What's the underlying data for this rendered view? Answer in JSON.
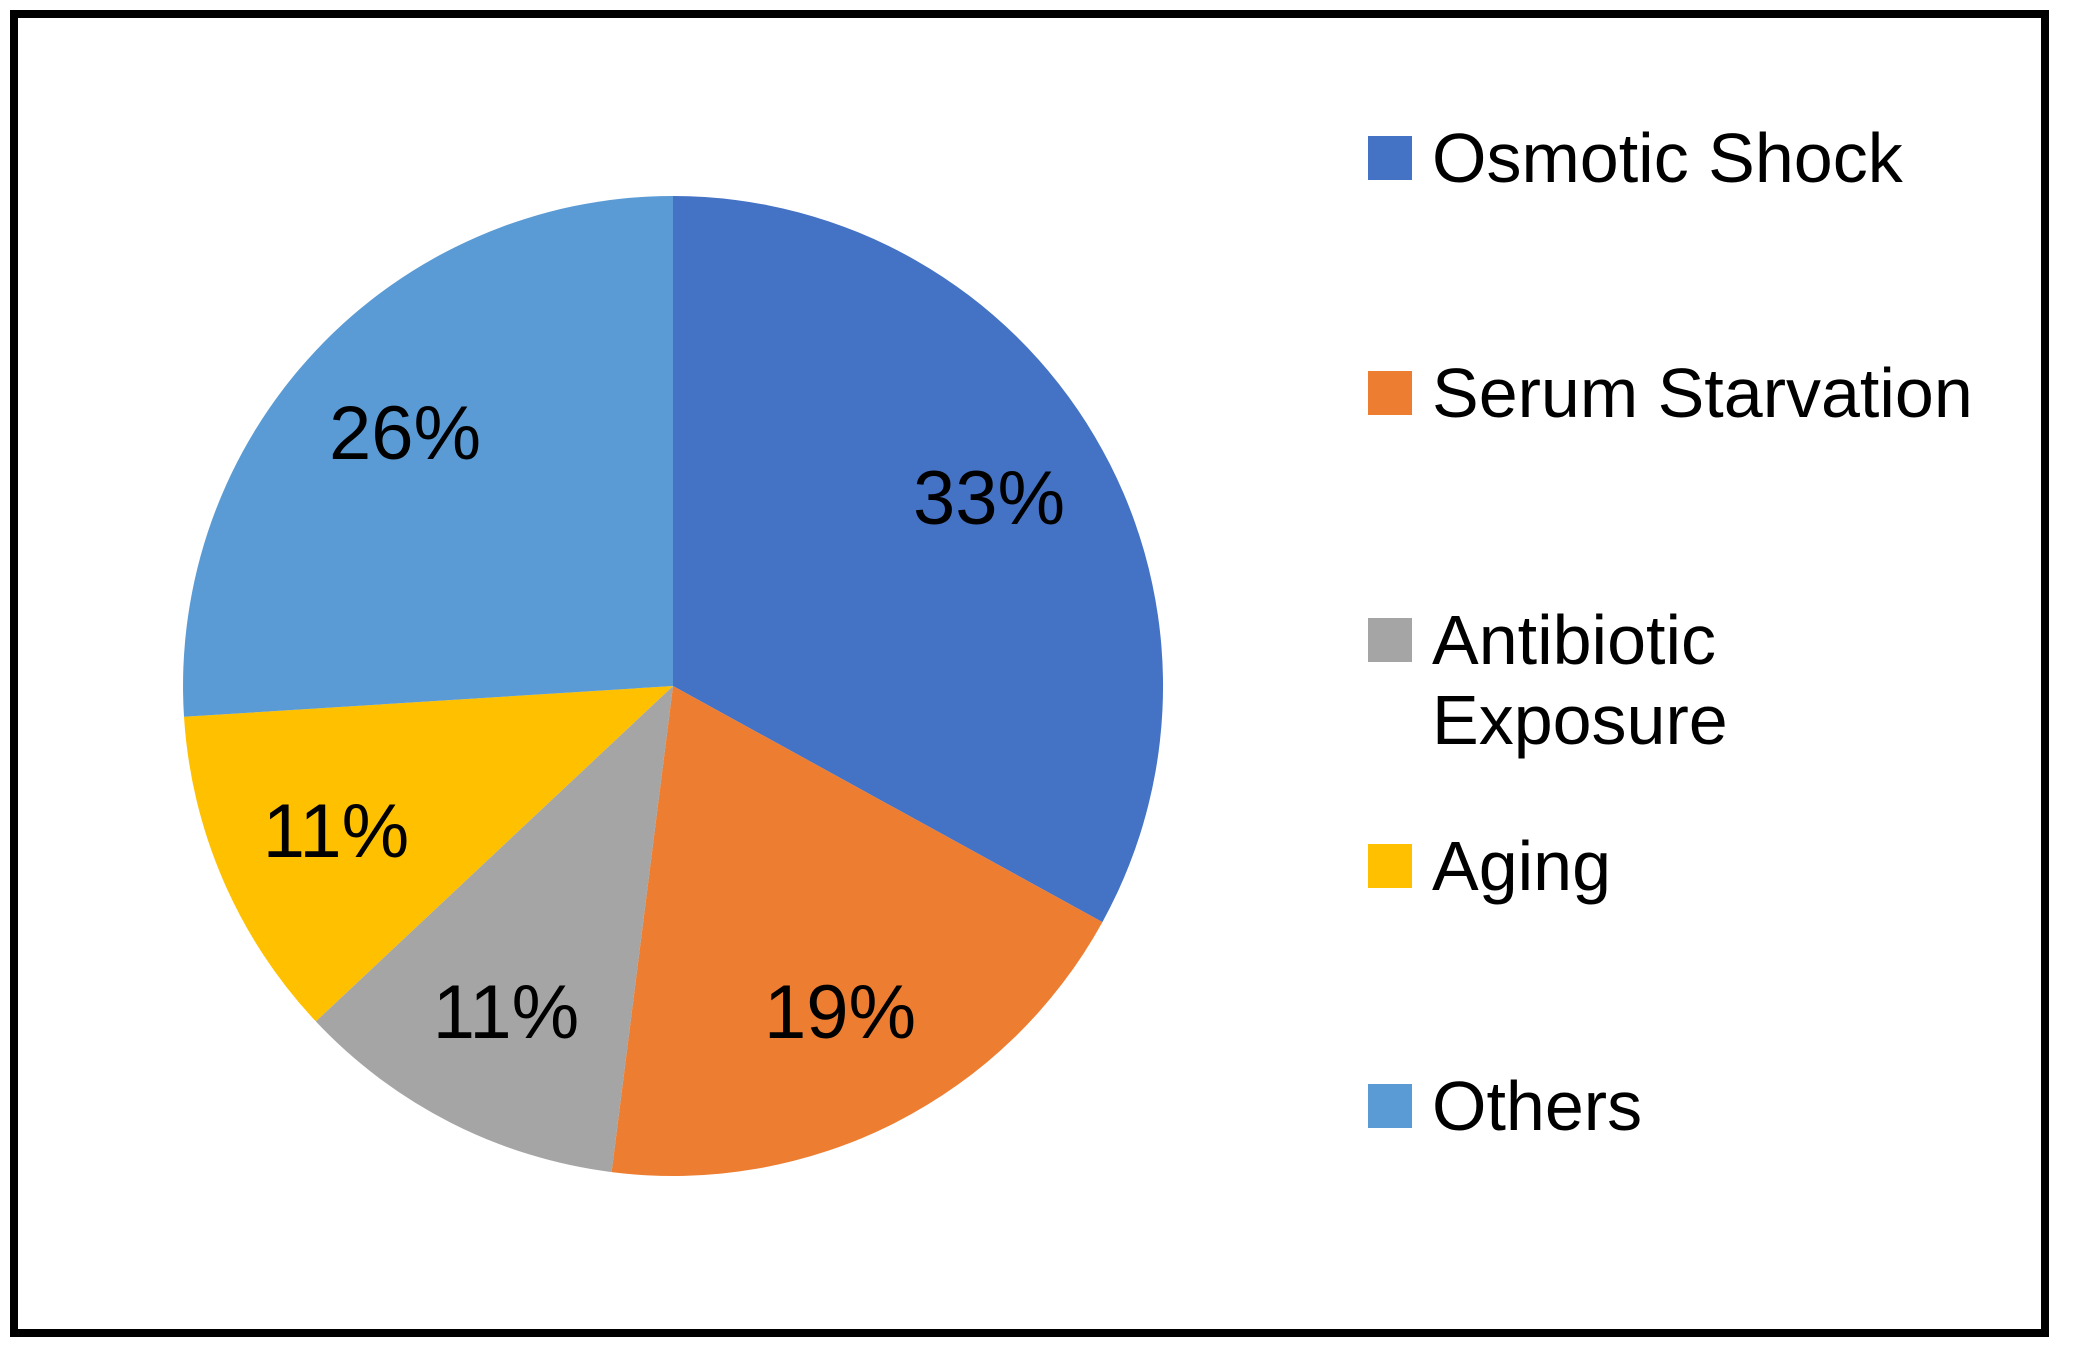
{
  "chart_data": {
    "type": "pie",
    "title": "",
    "slices": [
      {
        "label": "Osmotic Shock",
        "value": 33,
        "pct_label": "33%",
        "color": "#4472C4"
      },
      {
        "label": "Serum Starvation",
        "value": 19,
        "pct_label": "19%",
        "color": "#ED7D31"
      },
      {
        "label": "Antibiotic Exposure",
        "value": 11,
        "pct_label": "11%",
        "color": "#A5A5A5"
      },
      {
        "label": "Aging",
        "value": 11,
        "pct_label": "11%",
        "color": "#FFC000"
      },
      {
        "label": "Others",
        "value": 26,
        "pct_label": "26%",
        "color": "#5B9BD5"
      }
    ],
    "start_angle_deg": 0,
    "direction": "clockwise",
    "data_labels": "percent, inside slices",
    "legend_position": "right",
    "background_color": "#FFFFFF",
    "frame_color": "#000000",
    "label_color": "#000000"
  }
}
